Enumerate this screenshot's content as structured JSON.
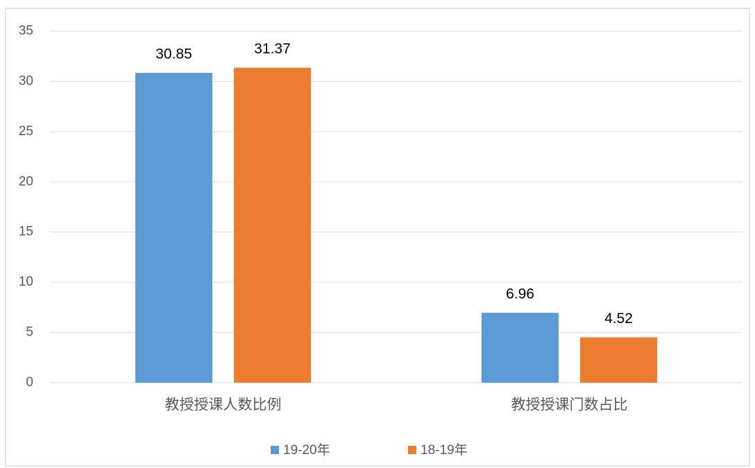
{
  "chart_data": {
    "type": "bar",
    "categories": [
      "教授授课人数比例",
      "教授授课门数占比"
    ],
    "series": [
      {
        "name": "19-20年",
        "color": "#5b9bd5",
        "values": [
          30.85,
          6.96
        ]
      },
      {
        "name": "18-19年",
        "color": "#ed7d31",
        "values": [
          31.37,
          4.52
        ]
      }
    ],
    "ylim": [
      0,
      35
    ],
    "yticks": [
      0,
      5,
      10,
      15,
      20,
      25,
      30,
      35
    ],
    "grid": true,
    "legend": "bottom"
  }
}
